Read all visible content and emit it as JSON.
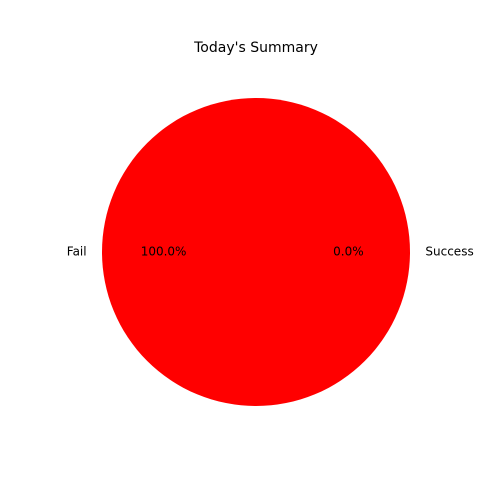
{
  "chart_data": {
    "type": "pie",
    "title": "Today's Summary",
    "slices": [
      {
        "label": "Success",
        "value": 0,
        "percent_label": "0.0%",
        "color": "#00b050"
      },
      {
        "label": "Fail",
        "value": 100,
        "percent_label": "100.0%",
        "color": "#ff0000"
      }
    ],
    "legend": "none"
  }
}
